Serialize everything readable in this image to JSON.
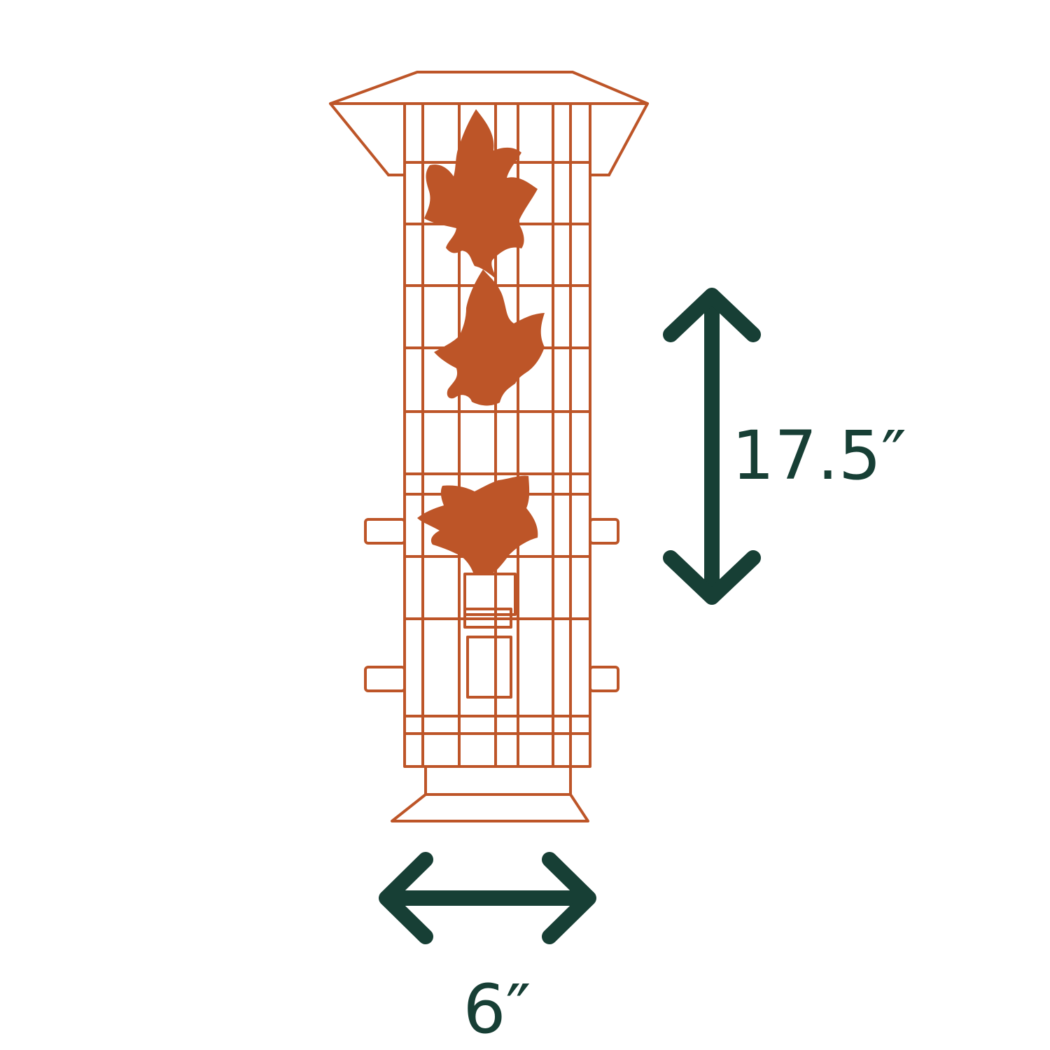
{
  "colors": {
    "feeder": "#bd5528",
    "dimension": "#173f35",
    "background": "#ffffff"
  },
  "dimensions": {
    "height": {
      "label": "17.5″",
      "arrow": "double-vertical-arrow-icon"
    },
    "width": {
      "label": "6″",
      "arrow": "double-horizontal-arrow-icon"
    }
  },
  "feeder": {
    "icon": "bird-feeder-icon",
    "decoration": [
      "maple-leaf-icon",
      "maple-leaf-icon",
      "maple-leaf-icon"
    ]
  }
}
